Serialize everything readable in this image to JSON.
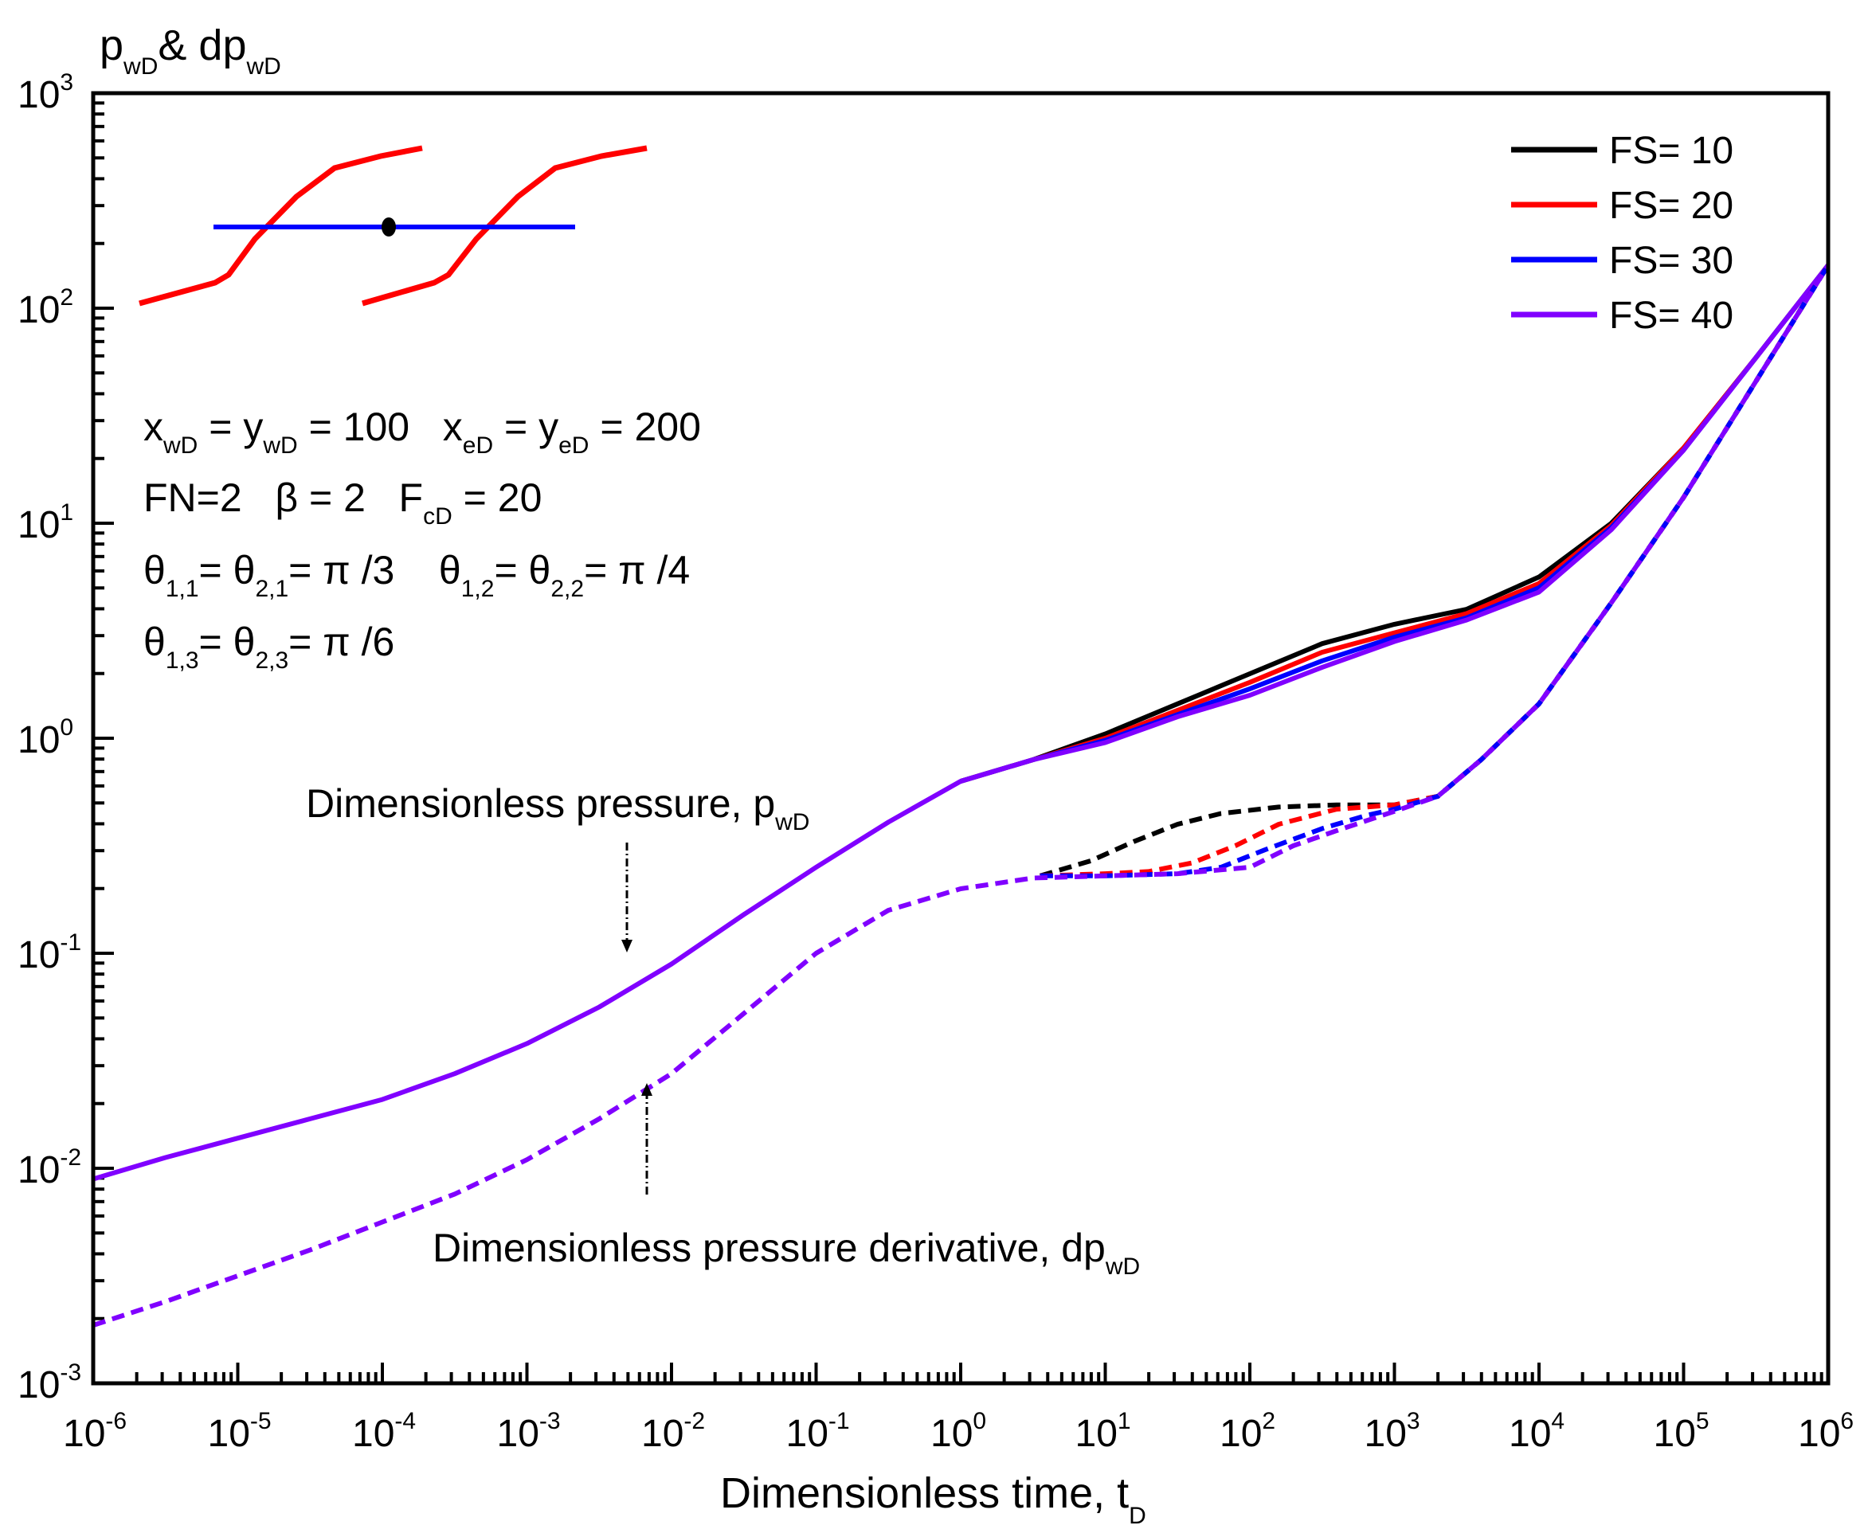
{
  "chart_data": {
    "type": "line",
    "xscale": "log",
    "yscale": "log",
    "xlim": [
      1e-06,
      1000000.0
    ],
    "ylim": [
      0.001,
      1000.0
    ],
    "xlabel": {
      "main": "Dimensionless time, t",
      "sub": "D"
    },
    "ylabel": {
      "p": "p",
      "p_sub": "wD",
      "amp": "& dp",
      "dp_sub": "wD"
    },
    "x_ticks": [
      {
        "base": "10",
        "exp": "-6",
        "value": -6
      },
      {
        "base": "10",
        "exp": "-5",
        "value": -5
      },
      {
        "base": "10",
        "exp": "-4",
        "value": -4
      },
      {
        "base": "10",
        "exp": "-3",
        "value": -3
      },
      {
        "base": "10",
        "exp": "-2",
        "value": -2
      },
      {
        "base": "10",
        "exp": "-1",
        "value": -1
      },
      {
        "base": "10",
        "exp": "0",
        "value": 0
      },
      {
        "base": "10",
        "exp": "1",
        "value": 1
      },
      {
        "base": "10",
        "exp": "2",
        "value": 2
      },
      {
        "base": "10",
        "exp": "3",
        "value": 3
      },
      {
        "base": "10",
        "exp": "4",
        "value": 4
      },
      {
        "base": "10",
        "exp": "5",
        "value": 5
      },
      {
        "base": "10",
        "exp": "6",
        "value": 6
      }
    ],
    "y_ticks": [
      {
        "base": "10",
        "exp": "-3",
        "value": -3
      },
      {
        "base": "10",
        "exp": "-2",
        "value": -2
      },
      {
        "base": "10",
        "exp": "-1",
        "value": -1
      },
      {
        "base": "10",
        "exp": "0",
        "value": 0
      },
      {
        "base": "10",
        "exp": "1",
        "value": 1
      },
      {
        "base": "10",
        "exp": "2",
        "value": 2
      },
      {
        "base": "10",
        "exp": "3",
        "value": 3
      }
    ],
    "legend": {
      "placement": "top-right",
      "entries": [
        {
          "label": "FS= 10",
          "color": "#000000"
        },
        {
          "label": "FS= 20",
          "color": "#ff0000"
        },
        {
          "label": "FS= 30",
          "color": "#0000ff"
        },
        {
          "label": "FS= 40",
          "color": "#8000ff"
        }
      ]
    },
    "series_note": "points are [log10(tD), log10(value)]",
    "series": [
      {
        "name": "FS= 10 pwD",
        "color": "#000000",
        "style": "solid",
        "points": [
          [
            0,
            -0.2
          ],
          [
            0.5,
            -0.1
          ],
          [
            1,
            0.02
          ],
          [
            1.5,
            0.16
          ],
          [
            2,
            0.3
          ],
          [
            2.5,
            0.44
          ],
          [
            3,
            0.53
          ],
          [
            3.5,
            0.6
          ],
          [
            4,
            0.75
          ],
          [
            4.5,
            1.0
          ],
          [
            5,
            1.35
          ],
          [
            5.5,
            1.77
          ],
          [
            6,
            2.2
          ]
        ]
      },
      {
        "name": "FS= 20 pwD",
        "color": "#ff0000",
        "style": "solid",
        "points": [
          [
            0,
            -0.2
          ],
          [
            0.5,
            -0.1
          ],
          [
            1,
            0.0
          ],
          [
            1.5,
            0.13
          ],
          [
            2,
            0.26
          ],
          [
            2.5,
            0.4
          ],
          [
            3,
            0.49
          ],
          [
            3.5,
            0.58
          ],
          [
            4,
            0.72
          ],
          [
            4.5,
            0.99
          ],
          [
            5,
            1.35
          ],
          [
            5.5,
            1.77
          ],
          [
            6,
            2.2
          ]
        ]
      },
      {
        "name": "FS= 30 pwD",
        "color": "#0000ff",
        "style": "solid",
        "points": [
          [
            0,
            -0.2
          ],
          [
            0.5,
            -0.1
          ],
          [
            1,
            -0.01
          ],
          [
            1.5,
            0.11
          ],
          [
            2,
            0.23
          ],
          [
            2.5,
            0.36
          ],
          [
            3,
            0.47
          ],
          [
            3.5,
            0.56
          ],
          [
            4,
            0.7
          ],
          [
            4.5,
            0.98
          ],
          [
            5,
            1.34
          ],
          [
            5.5,
            1.77
          ],
          [
            6,
            2.2
          ]
        ]
      },
      {
        "name": "FS= 40 pwD",
        "color": "#8000ff",
        "style": "solid",
        "points": [
          [
            -6,
            -2.05
          ],
          [
            -5.5,
            -1.95
          ],
          [
            -5,
            -1.86
          ],
          [
            -4.5,
            -1.77
          ],
          [
            -4,
            -1.68
          ],
          [
            -3.5,
            -1.56
          ],
          [
            -3,
            -1.42
          ],
          [
            -2.5,
            -1.25
          ],
          [
            -2,
            -1.05
          ],
          [
            -1.5,
            -0.82
          ],
          [
            -1,
            -0.6
          ],
          [
            -0.5,
            -0.39
          ],
          [
            0,
            -0.2
          ],
          [
            0.5,
            -0.1
          ],
          [
            1,
            -0.02
          ],
          [
            1.5,
            0.1
          ],
          [
            2,
            0.2
          ],
          [
            2.5,
            0.33
          ],
          [
            3,
            0.45
          ],
          [
            3.5,
            0.55
          ],
          [
            4,
            0.68
          ],
          [
            4.5,
            0.97
          ],
          [
            5,
            1.34
          ],
          [
            5.5,
            1.77
          ],
          [
            6,
            2.2
          ]
        ]
      },
      {
        "name": "FS= 10 dpwD",
        "color": "#000000",
        "style": "dashed",
        "points": [
          [
            0.55,
            -0.64
          ],
          [
            0.9,
            -0.57
          ],
          [
            1.2,
            -0.48
          ],
          [
            1.5,
            -0.4
          ],
          [
            1.8,
            -0.35
          ],
          [
            2.2,
            -0.32
          ],
          [
            2.6,
            -0.31
          ],
          [
            3,
            -0.31
          ],
          [
            3.3,
            -0.27
          ],
          [
            3.6,
            -0.1
          ],
          [
            4,
            0.16
          ],
          [
            4.5,
            0.63
          ],
          [
            5,
            1.12
          ],
          [
            5.5,
            1.66
          ],
          [
            6,
            2.2
          ]
        ]
      },
      {
        "name": "FS= 20 dpwD",
        "color": "#ff0000",
        "style": "dashed",
        "points": [
          [
            0.55,
            -0.64
          ],
          [
            1,
            -0.63
          ],
          [
            1.3,
            -0.62
          ],
          [
            1.6,
            -0.58
          ],
          [
            1.9,
            -0.5
          ],
          [
            2.2,
            -0.4
          ],
          [
            2.6,
            -0.33
          ],
          [
            3,
            -0.31
          ],
          [
            3.3,
            -0.27
          ],
          [
            3.6,
            -0.1
          ],
          [
            4,
            0.16
          ],
          [
            4.5,
            0.63
          ],
          [
            5,
            1.12
          ],
          [
            5.5,
            1.66
          ],
          [
            6,
            2.2
          ]
        ]
      },
      {
        "name": "FS= 30 dpwD",
        "color": "#0000ff",
        "style": "dashed",
        "points": [
          [
            0.55,
            -0.64
          ],
          [
            1,
            -0.64
          ],
          [
            1.5,
            -0.63
          ],
          [
            1.8,
            -0.6
          ],
          [
            2.1,
            -0.52
          ],
          [
            2.5,
            -0.42
          ],
          [
            2.8,
            -0.36
          ],
          [
            3,
            -0.33
          ],
          [
            3.3,
            -0.27
          ],
          [
            3.6,
            -0.1
          ],
          [
            4,
            0.16
          ],
          [
            4.5,
            0.63
          ],
          [
            5,
            1.12
          ],
          [
            5.5,
            1.66
          ],
          [
            6,
            2.2
          ]
        ]
      },
      {
        "name": "FS= 40 dpwD",
        "color": "#8000ff",
        "style": "dashed",
        "points": [
          [
            -6,
            -2.73
          ],
          [
            -5.5,
            -2.62
          ],
          [
            -5,
            -2.5
          ],
          [
            -4.5,
            -2.38
          ],
          [
            -4,
            -2.25
          ],
          [
            -3.5,
            -2.12
          ],
          [
            -3,
            -1.96
          ],
          [
            -2.5,
            -1.77
          ],
          [
            -2,
            -1.56
          ],
          [
            -1.5,
            -1.28
          ],
          [
            -1,
            -1.0
          ],
          [
            -0.5,
            -0.8
          ],
          [
            0,
            -0.7
          ],
          [
            0.5,
            -0.65
          ],
          [
            1,
            -0.64
          ],
          [
            1.5,
            -0.63
          ],
          [
            2,
            -0.6
          ],
          [
            2.3,
            -0.5
          ],
          [
            2.6,
            -0.43
          ],
          [
            3,
            -0.34
          ],
          [
            3.3,
            -0.27
          ],
          [
            3.6,
            -0.1
          ],
          [
            4,
            0.16
          ],
          [
            4.5,
            0.63
          ],
          [
            5,
            1.12
          ],
          [
            5.5,
            1.66
          ],
          [
            6,
            2.2
          ]
        ]
      }
    ],
    "annotations": {
      "pressure": {
        "text": "Dimensionless pressure, p",
        "sub": "wD"
      },
      "derivative": {
        "text": "Dimensionless pressure derivative, dp",
        "sub": "wD"
      }
    },
    "parameters": {
      "line1": {
        "a": "x",
        "a_sub": "wD",
        "b": " = y",
        "b_sub": "wD",
        "c": " = 100   x",
        "c_sub": "eD",
        "d": " = y",
        "d_sub": "eD",
        "e": " = 200"
      },
      "line2": {
        "a": "FN=2   β = 2   F",
        "a_sub": "cD",
        "b": " = 20"
      },
      "line3": {
        "a": "θ",
        "a_sub": "1,1",
        "b": "= θ",
        "b_sub": "2,1",
        "c": "= π /3    θ",
        "c_sub": "1,2",
        "d": "= θ",
        "d_sub": "2,2",
        "e": "= π /4"
      },
      "line4": {
        "a": "θ",
        "a_sub": "1,3",
        "b": "= θ",
        "b_sub": "2,3",
        "c": "= π /6"
      }
    },
    "schematic": {
      "fracture_color": "#ff0000",
      "well_color": "#0000ff",
      "well_point_color": "#000000"
    }
  }
}
